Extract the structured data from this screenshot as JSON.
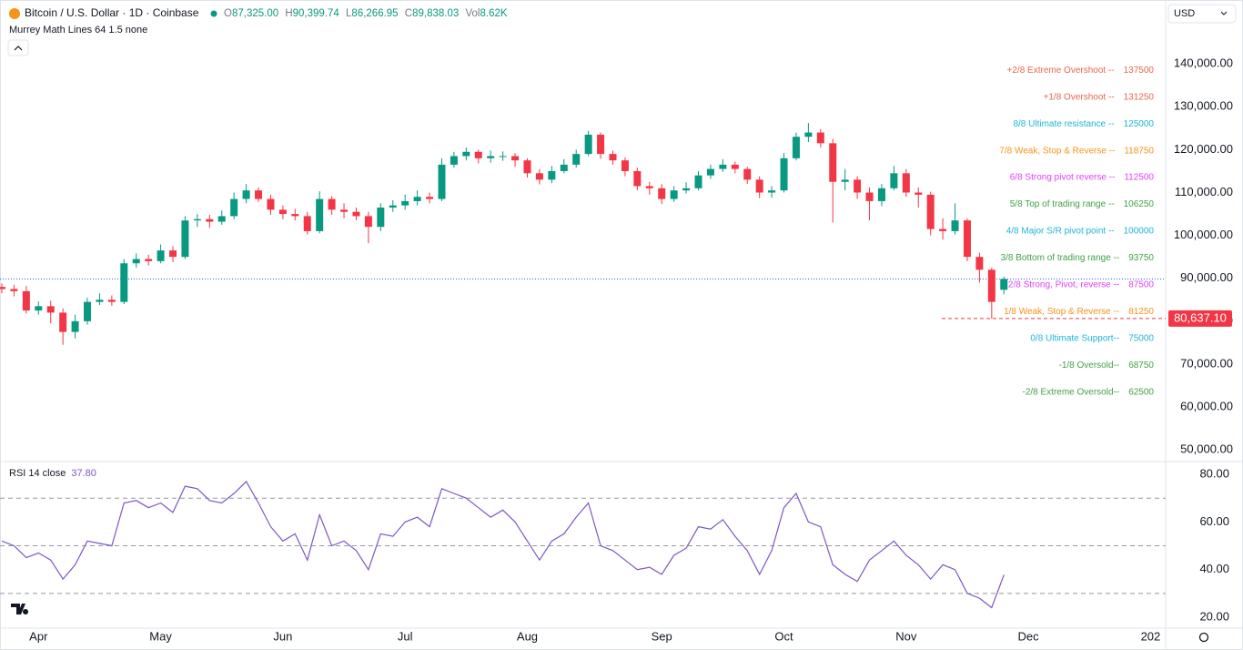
{
  "header": {
    "symbol": "Bitcoin / U.S. Dollar · 1D · Coinbase",
    "ohlc": [
      {
        "key": "O",
        "value": "87,325.00"
      },
      {
        "key": "H",
        "value": "90,399.74"
      },
      {
        "key": "L",
        "value": "86,266.95"
      },
      {
        "key": "C",
        "value": "89,838.03"
      },
      {
        "key": "Vol",
        "value": "8.62K"
      }
    ],
    "indicator": "Murrey Math Lines 64 1.5 none",
    "currency": "USD"
  },
  "chart_data": {
    "type": "candlestick",
    "up_color": "#089981",
    "down_color": "#f23645",
    "grid": false,
    "categories": [
      null,
      null,
      null,
      "Apr",
      null,
      null,
      null,
      null,
      null,
      null,
      null,
      null,
      null,
      "May",
      null,
      null,
      null,
      null,
      null,
      null,
      null,
      null,
      null,
      "Jun",
      null,
      null,
      null,
      null,
      null,
      null,
      null,
      null,
      null,
      "Jul",
      null,
      null,
      null,
      null,
      null,
      null,
      null,
      null,
      null,
      "Aug",
      null,
      null,
      null,
      null,
      null,
      null,
      null,
      null,
      null,
      null,
      "Sep",
      null,
      null,
      null,
      null,
      null,
      null,
      null,
      null,
      null,
      "Oct",
      null,
      null,
      null,
      null,
      null,
      null,
      null,
      null,
      null,
      "Nov",
      null,
      null,
      null,
      null,
      null,
      null,
      null,
      null,
      null,
      "Dec",
      null,
      null,
      null,
      null,
      null,
      null,
      null,
      null,
      null,
      "202"
    ],
    "open": [
      88000,
      87500,
      87000,
      82500,
      83500,
      82000,
      77500,
      80000,
      84500,
      85000,
      84500,
      93500,
      94500,
      94000,
      96500,
      95000,
      103500,
      103800,
      103200,
      104500,
      108500,
      110500,
      108500,
      106000,
      105000,
      104500,
      101000,
      108500,
      106000,
      105500,
      104500,
      102000,
      106500,
      107000,
      108000,
      109000,
      108500,
      116500,
      118500,
      119500,
      118000,
      118500,
      118500,
      117500,
      114500,
      113000,
      115000,
      116500,
      119000,
      123500,
      119000,
      117500,
      115000,
      111500,
      111000,
      108500,
      110500,
      111000,
      114000,
      115500,
      116500,
      115500,
      113000,
      110000,
      110500,
      118000,
      123000,
      124000,
      121500,
      112500,
      113000,
      110000,
      108000,
      111000,
      114500,
      110000,
      109500,
      101500,
      101000,
      103500,
      95000,
      92000,
      87325,
      null,
      null,
      null,
      null,
      null,
      null,
      null,
      null,
      null,
      null,
      null,
      null
    ],
    "high": [
      88800,
      88500,
      88200,
      84600,
      84800,
      83000,
      81500,
      85500,
      86500,
      86000,
      94500,
      95800,
      95500,
      97900,
      97500,
      104500,
      105000,
      104800,
      105800,
      110000,
      112000,
      111200,
      109500,
      107000,
      106200,
      105500,
      110300,
      109200,
      107500,
      106500,
      105500,
      107500,
      108200,
      109500,
      110500,
      110000,
      118000,
      119500,
      120500,
      120000,
      119800,
      119600,
      119200,
      118000,
      115500,
      116200,
      117800,
      120000,
      124400,
      124000,
      119800,
      118200,
      115800,
      112500,
      112000,
      111500,
      112400,
      115000,
      116500,
      117800,
      117200,
      116000,
      113800,
      111500,
      119200,
      124000,
      126200,
      124800,
      122500,
      115500,
      113800,
      111200,
      112000,
      116200,
      115500,
      111200,
      110200,
      104000,
      107500,
      104000,
      96000,
      92500,
      90399.74,
      null,
      null,
      null,
      null,
      null,
      null,
      null,
      null,
      null,
      null,
      null,
      null
    ],
    "low": [
      86500,
      85800,
      81800,
      81500,
      79500,
      74500,
      76000,
      79200,
      83800,
      83600,
      84000,
      92500,
      93000,
      93500,
      93800,
      94500,
      102000,
      101800,
      102500,
      103800,
      107500,
      107800,
      104800,
      103800,
      103500,
      100200,
      100500,
      104800,
      104000,
      103500,
      98200,
      101000,
      105500,
      106000,
      107000,
      107500,
      108000,
      115800,
      117500,
      116800,
      117000,
      117400,
      116000,
      113500,
      111900,
      112200,
      114500,
      115800,
      118500,
      117900,
      116500,
      113800,
      110500,
      109500,
      107300,
      107800,
      109800,
      110500,
      113200,
      114800,
      114500,
      112000,
      108700,
      108800,
      110000,
      117500,
      121800,
      120500,
      103000,
      110500,
      108500,
      103500,
      106800,
      110500,
      109000,
      106500,
      100000,
      99000,
      100200,
      94000,
      89000,
      80600,
      86266.95,
      null,
      null,
      null,
      null,
      null,
      null,
      null,
      null,
      null,
      null,
      null,
      null
    ],
    "close": [
      87500,
      87000,
      82500,
      83500,
      82000,
      77500,
      80000,
      84500,
      85000,
      84500,
      93500,
      94500,
      94000,
      96500,
      95000,
      103500,
      103800,
      103200,
      104500,
      108500,
      110500,
      108500,
      106000,
      105000,
      104500,
      101000,
      108500,
      106000,
      105500,
      104500,
      102000,
      106500,
      107000,
      108000,
      109000,
      108500,
      116500,
      118500,
      119500,
      118000,
      118500,
      118500,
      117500,
      114500,
      113000,
      115000,
      116500,
      119000,
      123500,
      119000,
      117500,
      115000,
      111500,
      111000,
      108500,
      110500,
      111000,
      114000,
      115500,
      116500,
      115500,
      113000,
      110000,
      110500,
      118000,
      123000,
      124000,
      121500,
      112500,
      113000,
      110000,
      108000,
      111000,
      114500,
      110000,
      109500,
      101500,
      101000,
      103500,
      95000,
      92000,
      84500,
      89838.03,
      null,
      null,
      null,
      null,
      null,
      null,
      null,
      null,
      null,
      null,
      null,
      null
    ],
    "ylim": [
      47700,
      153200
    ],
    "yticks": [
      {
        "value": 50000,
        "label": "50,000.00"
      },
      {
        "value": 60000,
        "label": "60,000.00"
      },
      {
        "value": 70000,
        "label": "70,000.00"
      },
      {
        "value": 80000,
        "label": "80,000.00"
      },
      {
        "value": 90000,
        "label": "90,000.00"
      },
      {
        "value": 100000,
        "label": "100,000.00"
      },
      {
        "value": 110000,
        "label": "110,000.00"
      },
      {
        "value": 120000,
        "label": "120,000.00"
      },
      {
        "value": 130000,
        "label": "130,000.00"
      },
      {
        "value": 140000,
        "label": "140,000.00"
      }
    ],
    "price_tag": {
      "value": 80637.1,
      "label": "80,637.10",
      "color": "#f23645"
    },
    "last_price_color": "#2962ff",
    "levels": [
      {
        "label": "+2/8 Extreme Overshoot --",
        "value": 137500,
        "color": "#e8664f"
      },
      {
        "label": "+1/8 Overshoot --",
        "value": 131250,
        "color": "#e8664f"
      },
      {
        "label": "8/8 Ultimate resistance --",
        "value": 125000,
        "color": "#1fb6d4"
      },
      {
        "label": "7/8 Weak, Stop & Reverse --",
        "value": 118750,
        "color": "#f7931a"
      },
      {
        "label": "6/8 Strong pivot reverse --",
        "value": 112500,
        "color": "#e040fb"
      },
      {
        "label": "5/8 Top of trading range --",
        "value": 106250,
        "color": "#43a047"
      },
      {
        "label": "4/8 Major S/R pivot point --",
        "value": 100000,
        "color": "#1fb6d4"
      },
      {
        "label": "3/8 Bottom of trading range --",
        "value": 93750,
        "color": "#43a047"
      },
      {
        "label": "2/8 Strong, Pivot, reverse --",
        "value": 87500,
        "color": "#e040fb"
      },
      {
        "label": "1/8 Weak, Stop & Reverse --",
        "value": 81250,
        "color": "#f7931a"
      },
      {
        "label": "0/8 Ultimate Support--",
        "value": 75000,
        "color": "#1fb6d4"
      },
      {
        "label": "-1/8 Oversold--",
        "value": 68750,
        "color": "#43a047"
      },
      {
        "label": "-2/8 Extreme Oversold--",
        "value": 62500,
        "color": "#43a047"
      }
    ],
    "rsi": {
      "name": "RSI 14 close",
      "value_label": "37.80",
      "color": "#7e57c2",
      "values": [
        52,
        50,
        45,
        47,
        44,
        36,
        42,
        52,
        51,
        50,
        68,
        69,
        66,
        68,
        64,
        75,
        74,
        69,
        68,
        72,
        77,
        68,
        58,
        52,
        55,
        44,
        63,
        50,
        52,
        48,
        40,
        55,
        54,
        60,
        62,
        58,
        74,
        72,
        70,
        66,
        62,
        65,
        60,
        52,
        44,
        52,
        55,
        62,
        68,
        50,
        48,
        44,
        40,
        41,
        38,
        46,
        49,
        58,
        57,
        61,
        54,
        48,
        38,
        48,
        66,
        72,
        60,
        58,
        42,
        38,
        35,
        44,
        48,
        52,
        46,
        42,
        36,
        42,
        40,
        30,
        28,
        24,
        37.8,
        null,
        null,
        null,
        null,
        null,
        null,
        null,
        null,
        null,
        null,
        null,
        null
      ],
      "ylim": [
        15.4,
        85
      ],
      "yticks": [
        {
          "value": 20,
          "label": "20.00"
        },
        {
          "value": 40,
          "label": "40.00"
        },
        {
          "value": 60,
          "label": "60.00"
        },
        {
          "value": 80,
          "label": "80.00"
        }
      ],
      "bands": [
        70,
        50,
        30
      ]
    }
  }
}
